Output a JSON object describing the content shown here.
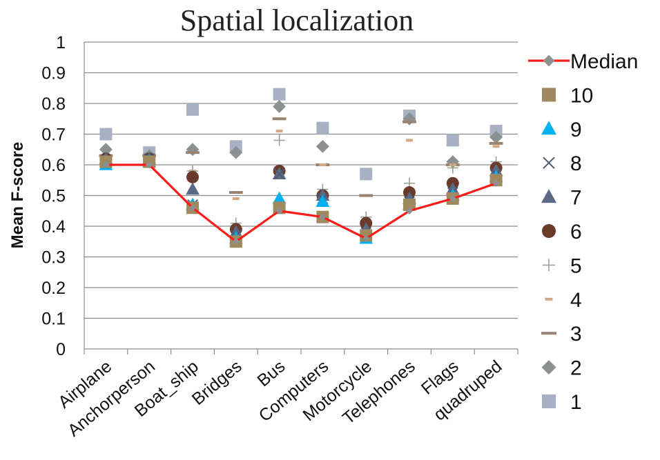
{
  "chart_data": {
    "type": "scatter",
    "title": "Spatial localization",
    "ylabel": "Mean F-score",
    "xlabel": "",
    "ylim": [
      0,
      1
    ],
    "yticks": [
      "0",
      "0.1",
      "0.2",
      "0.3",
      "0.4",
      "0.5",
      "0.6",
      "0.7",
      "0.8",
      "0.9",
      "1"
    ],
    "grid": true,
    "legend_position": "right",
    "categories": [
      "Airplane",
      "Anchorperson",
      "Boat_ship",
      "Bridges",
      "Bus",
      "Computers",
      "Motorcycle",
      "Telephones",
      "Flags",
      "quadruped"
    ],
    "series": [
      {
        "name": "Median",
        "marker": "line-diamond",
        "color": "#ff1a1a",
        "values": [
          0.6,
          0.6,
          0.46,
          0.35,
          0.45,
          0.43,
          0.36,
          0.45,
          0.49,
          0.54
        ]
      },
      {
        "name": "10",
        "marker": "square",
        "color": "#9e8a5e",
        "values": [
          0.61,
          0.61,
          0.46,
          0.35,
          0.46,
          0.43,
          0.37,
          0.47,
          0.49,
          0.55
        ]
      },
      {
        "name": "9",
        "marker": "triangle",
        "color": "#00b0f0",
        "values": [
          0.6,
          0.61,
          0.47,
          0.36,
          0.49,
          0.48,
          0.36,
          0.47,
          0.5,
          0.56
        ]
      },
      {
        "name": "8",
        "marker": "x",
        "color": "#4a5a78",
        "values": [
          0.61,
          0.62,
          0.47,
          0.37,
          0.57,
          0.49,
          0.38,
          0.48,
          0.51,
          0.57
        ]
      },
      {
        "name": "7",
        "marker": "triangle",
        "color": "#5a6a84",
        "values": [
          0.62,
          0.62,
          0.52,
          0.38,
          0.57,
          0.5,
          0.39,
          0.49,
          0.52,
          0.58
        ]
      },
      {
        "name": "6",
        "marker": "circle",
        "color": "#6b3a2a",
        "values": [
          0.62,
          0.62,
          0.56,
          0.39,
          0.58,
          0.5,
          0.41,
          0.51,
          0.54,
          0.59
        ]
      },
      {
        "name": "5",
        "marker": "plus",
        "color": "#9aa09a",
        "values": [
          0.62,
          0.62,
          0.58,
          0.41,
          0.68,
          0.52,
          0.43,
          0.54,
          0.59,
          0.61
        ]
      },
      {
        "name": "4",
        "marker": "short-dash",
        "color": "#d4a882",
        "values": [
          0.63,
          0.63,
          0.58,
          0.49,
          0.71,
          0.6,
          0.42,
          0.68,
          0.6,
          0.66
        ]
      },
      {
        "name": "3",
        "marker": "dash",
        "color": "#9a8270",
        "values": [
          0.63,
          0.63,
          0.64,
          0.51,
          0.75,
          0.6,
          0.5,
          0.74,
          0.6,
          0.67
        ]
      },
      {
        "name": "2",
        "marker": "diamond",
        "color": "#8c9090",
        "values": [
          0.65,
          0.63,
          0.65,
          0.64,
          0.79,
          0.66,
          0.37,
          0.75,
          0.61,
          0.69
        ]
      },
      {
        "name": "1",
        "marker": "square",
        "color": "#a8b0c4",
        "values": [
          0.7,
          0.64,
          0.78,
          0.66,
          0.83,
          0.72,
          0.57,
          0.76,
          0.68,
          0.71
        ]
      }
    ]
  }
}
